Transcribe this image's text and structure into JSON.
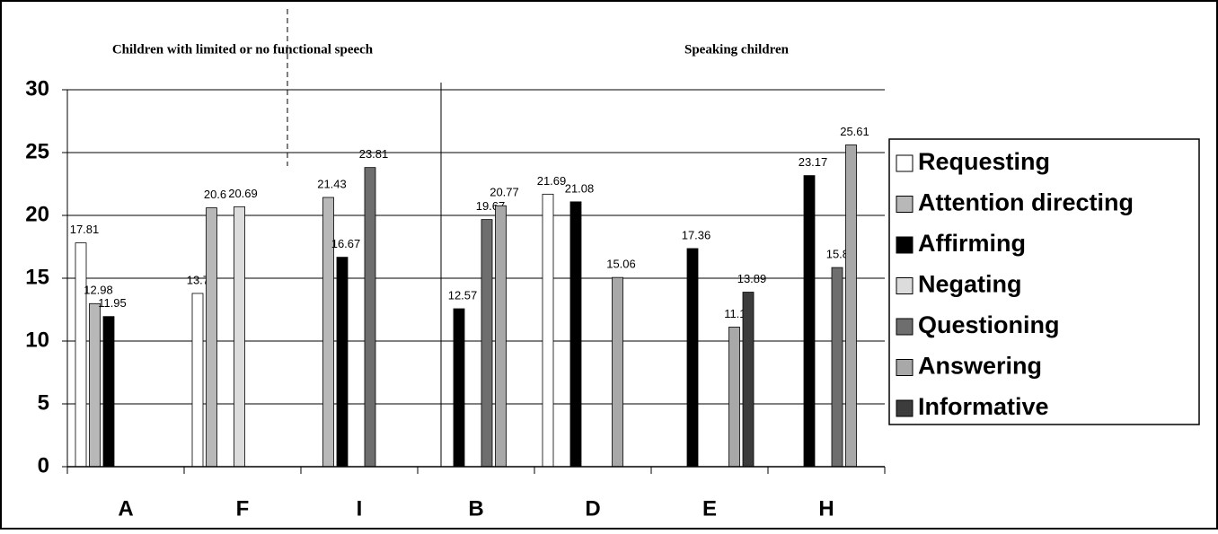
{
  "chart_data": {
    "type": "bar",
    "annotations": [
      "Children with limited or no functional speech",
      "Speaking children"
    ],
    "categories": [
      "A",
      "F",
      "I",
      "B",
      "D",
      "E",
      "H"
    ],
    "series": [
      {
        "name": "Requesting",
        "color": "#ffffff",
        "values": [
          17.81,
          13.79,
          null,
          null,
          21.69,
          null,
          null
        ]
      },
      {
        "name": "Attention directing",
        "color": "#b8b8b8",
        "values": [
          12.98,
          20.6,
          21.43,
          null,
          null,
          null,
          null
        ]
      },
      {
        "name": "Affirming",
        "color": "#000000",
        "values": [
          11.95,
          null,
          16.67,
          12.57,
          21.08,
          17.36,
          23.17
        ]
      },
      {
        "name": "Negating",
        "color": "#dcdcdc",
        "values": [
          null,
          20.69,
          null,
          null,
          null,
          null,
          null
        ]
      },
      {
        "name": "Questioning",
        "color": "#6e6e6e",
        "values": [
          null,
          null,
          23.81,
          19.67,
          null,
          null,
          15.85
        ]
      },
      {
        "name": "Answering",
        "color": "#a8a8a8",
        "values": [
          null,
          null,
          null,
          20.77,
          15.06,
          11.11,
          25.61
        ]
      },
      {
        "name": "Informative",
        "color": "#3c3c3c",
        "values": [
          null,
          null,
          null,
          null,
          null,
          13.89,
          null
        ]
      }
    ],
    "ylim": [
      0,
      30
    ],
    "yticks": [
      0,
      5,
      10,
      15,
      20,
      25,
      30
    ],
    "grid": true
  }
}
